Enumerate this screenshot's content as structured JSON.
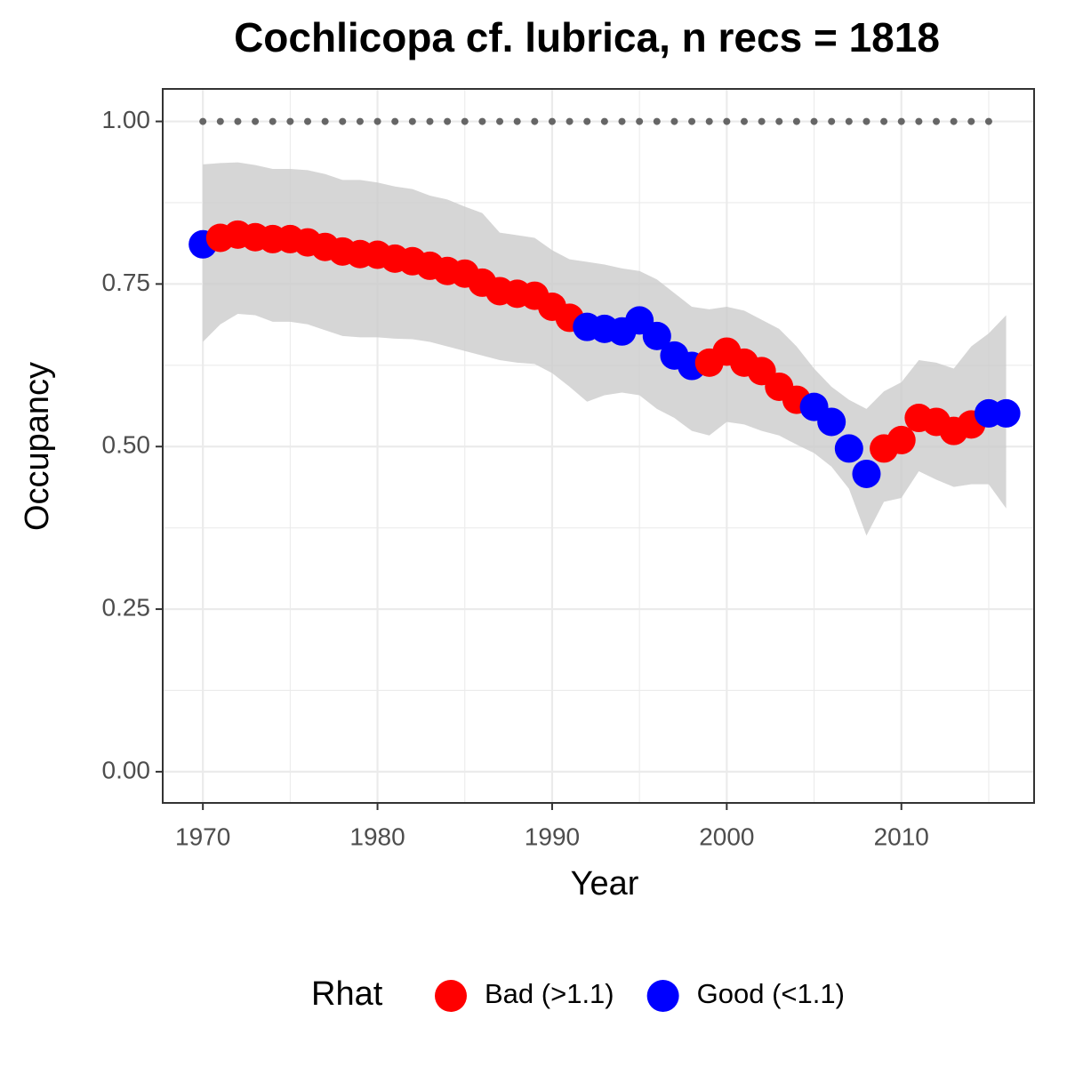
{
  "chart_data": {
    "type": "scatter",
    "title": "Cochlicopa cf. lubrica, n recs = 1818",
    "x_label": "Year",
    "y_label": "Occupancy",
    "x": [
      1970,
      1971,
      1972,
      1973,
      1974,
      1975,
      1976,
      1977,
      1978,
      1979,
      1980,
      1981,
      1982,
      1983,
      1984,
      1985,
      1986,
      1987,
      1988,
      1989,
      1990,
      1991,
      1992,
      1993,
      1994,
      1995,
      1996,
      1997,
      1998,
      1999,
      2000,
      2001,
      2002,
      2003,
      2004,
      2005,
      2006,
      2007,
      2008,
      2009,
      2010,
      2011,
      2012,
      2013,
      2014,
      2015,
      2016
    ],
    "series": [
      {
        "name": "Bad (>1.1)",
        "color": "#ff0000",
        "values": [
          null,
          0.821,
          0.826,
          0.822,
          0.819,
          0.819,
          0.814,
          0.807,
          0.8,
          0.796,
          0.795,
          0.789,
          0.785,
          0.778,
          0.77,
          0.766,
          0.752,
          0.739,
          0.735,
          0.732,
          0.715,
          0.698,
          null,
          null,
          null,
          null,
          null,
          null,
          null,
          0.629,
          0.646,
          0.629,
          0.616,
          0.592,
          0.572,
          null,
          null,
          null,
          null,
          0.497,
          0.51,
          0.544,
          0.538,
          0.524,
          0.534,
          null,
          null
        ]
      },
      {
        "name": "Good (<1.1)",
        "color": "#0000ff",
        "values": [
          0.811,
          null,
          null,
          null,
          null,
          null,
          null,
          null,
          null,
          null,
          null,
          null,
          null,
          null,
          null,
          null,
          null,
          null,
          null,
          null,
          null,
          null,
          0.684,
          0.681,
          0.677,
          0.694,
          0.67,
          0.64,
          0.624,
          null,
          null,
          null,
          null,
          null,
          null,
          0.561,
          0.538,
          0.497,
          0.458,
          null,
          null,
          null,
          null,
          null,
          null,
          0.551,
          0.551
        ]
      }
    ],
    "ribbon": {
      "color": "#cccccc",
      "upper": [
        0.934,
        0.936,
        0.937,
        0.933,
        0.927,
        0.927,
        0.925,
        0.919,
        0.91,
        0.91,
        0.906,
        0.9,
        0.896,
        0.886,
        0.88,
        0.869,
        0.859,
        0.829,
        0.825,
        0.821,
        0.802,
        0.788,
        0.784,
        0.78,
        0.774,
        0.77,
        0.757,
        0.736,
        0.715,
        0.711,
        0.715,
        0.709,
        0.695,
        0.681,
        0.654,
        0.62,
        0.592,
        0.572,
        0.558,
        0.585,
        0.599,
        0.633,
        0.629,
        0.62,
        0.654,
        0.674,
        0.702
      ],
      "lower": [
        0.661,
        0.688,
        0.704,
        0.702,
        0.692,
        0.692,
        0.688,
        0.679,
        0.67,
        0.668,
        0.668,
        0.666,
        0.665,
        0.661,
        0.654,
        0.647,
        0.64,
        0.633,
        0.629,
        0.627,
        0.613,
        0.592,
        0.569,
        0.579,
        0.583,
        0.579,
        0.558,
        0.544,
        0.524,
        0.517,
        0.538,
        0.534,
        0.524,
        0.517,
        0.503,
        0.49,
        0.469,
        0.435,
        0.363,
        0.415,
        0.421,
        0.462,
        0.449,
        0.438,
        0.442,
        0.442,
        0.405
      ]
    },
    "reference_line": {
      "y": 1,
      "from": 1970,
      "to": 2015,
      "color": "#666666"
    },
    "xlim": [
      1967.7,
      2017.6
    ],
    "ylim": [
      -0.048,
      1.05
    ],
    "xticks": [
      1970,
      1980,
      1990,
      2000,
      2010
    ],
    "yticks": [
      {
        "value": 0,
        "label": "0.00"
      },
      {
        "value": 0.25,
        "label": "0.25"
      },
      {
        "value": 0.5,
        "label": "0.50"
      },
      {
        "value": 0.75,
        "label": "0.75"
      },
      {
        "value": 1,
        "label": "1.00"
      }
    ],
    "grid": true,
    "legend": {
      "title": "Rhat",
      "position": "bottom"
    }
  }
}
